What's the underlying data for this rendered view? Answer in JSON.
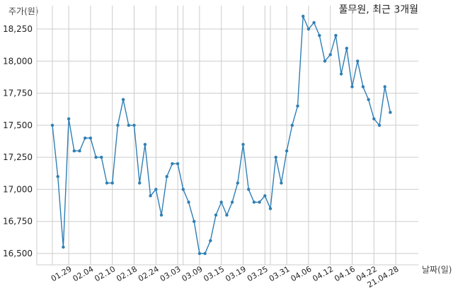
{
  "chart_data": {
    "type": "line",
    "title": "풀무원, 최근 3개월",
    "ylabel": "주가(원)",
    "xlabel": "날짜(일)",
    "ylim": [
      16400,
      18450
    ],
    "grid": true,
    "legend": "none",
    "line_color": "#2f7fb5",
    "yticks": [
      16500,
      16750,
      17000,
      17250,
      17500,
      17750,
      18000,
      18250
    ],
    "ytick_labels": [
      "16,500",
      "16,750",
      "17,000",
      "17,250",
      "17,500",
      "17,750",
      "18,000",
      "18,250"
    ],
    "xtick_labels": [
      "01.29",
      "02.04",
      "02.10",
      "02.18",
      "02.24",
      "03.03",
      "03.09",
      "03.15",
      "03.19",
      "03.25",
      "03.31",
      "04.06",
      "04.12",
      "04.16",
      "04.22",
      "21.04.28"
    ],
    "xtick_index": [
      3,
      7,
      11,
      15,
      19,
      23,
      27,
      31,
      35,
      39,
      43,
      47,
      51,
      55,
      59,
      63
    ],
    "values": [
      17500,
      17100,
      16550,
      17550,
      17300,
      17300,
      17400,
      17400,
      17250,
      17250,
      17050,
      17050,
      17500,
      17700,
      17500,
      17500,
      17050,
      17350,
      16950,
      17000,
      16800,
      17100,
      17200,
      17200,
      17000,
      16900,
      16750,
      16500,
      16500,
      16600,
      16800,
      16900,
      16800,
      16900,
      17050,
      17350,
      17000,
      16900,
      16900,
      16950,
      16850,
      17250,
      17050,
      17300,
      17500,
      17650,
      18350,
      18250,
      18300,
      18200,
      18000,
      18050,
      18200,
      17900,
      18100,
      17800,
      18000,
      17800,
      17700,
      17550,
      17500,
      17800,
      17600
    ]
  }
}
